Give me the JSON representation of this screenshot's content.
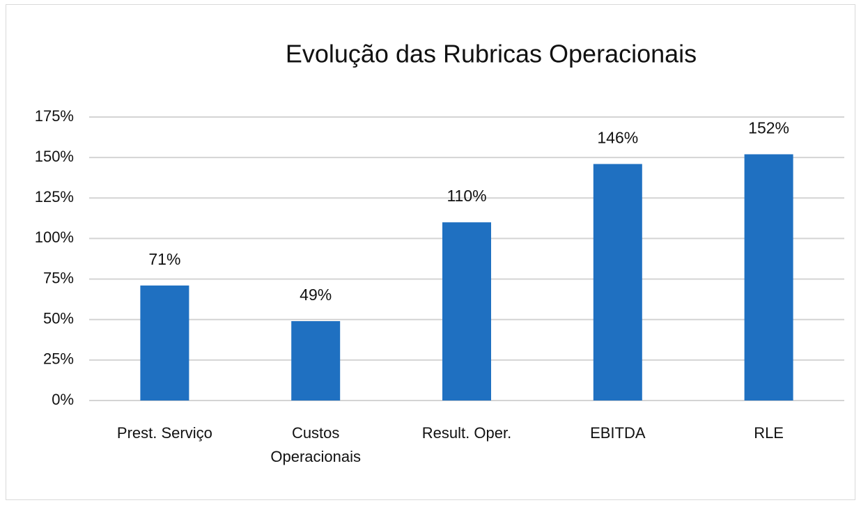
{
  "chart_data": {
    "type": "bar",
    "title": "Evolução das Rubricas Operacionais",
    "categories": [
      "Prest. Serviço",
      "Custos Operacionais",
      "Result. Oper.",
      "EBITDA",
      "RLE"
    ],
    "values": [
      71,
      49,
      110,
      146,
      152
    ],
    "value_labels": [
      "71%",
      "49%",
      "110%",
      "146%",
      "152%"
    ],
    "color": "#1f70c1",
    "ylim": [
      0,
      175
    ],
    "yticks": [
      {
        "value": 0,
        "label": "0%"
      },
      {
        "value": 25,
        "label": "25%"
      },
      {
        "value": 50,
        "label": "50%"
      },
      {
        "value": 75,
        "label": "75%"
      },
      {
        "value": 100,
        "label": "100%"
      },
      {
        "value": 125,
        "label": "125%"
      },
      {
        "value": 150,
        "label": "150%"
      },
      {
        "value": 175,
        "label": "175%"
      }
    ],
    "grid": true
  }
}
